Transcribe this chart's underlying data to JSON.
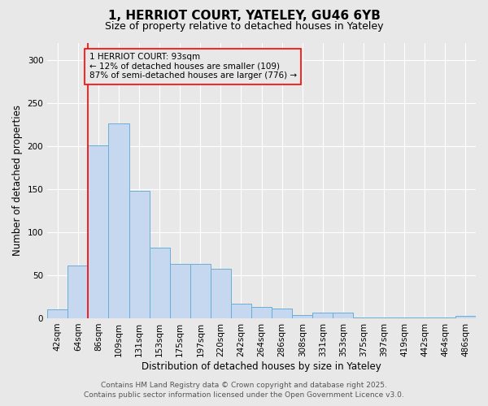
{
  "title_line1": "1, HERRIOT COURT, YATELEY, GU46 6YB",
  "title_line2": "Size of property relative to detached houses in Yateley",
  "xlabel": "Distribution of detached houses by size in Yateley",
  "ylabel": "Number of detached properties",
  "footer_line1": "Contains HM Land Registry data © Crown copyright and database right 2025.",
  "footer_line2": "Contains public sector information licensed under the Open Government Licence v3.0.",
  "bar_labels": [
    "42sqm",
    "64sqm",
    "86sqm",
    "109sqm",
    "131sqm",
    "153sqm",
    "175sqm",
    "197sqm",
    "220sqm",
    "242sqm",
    "264sqm",
    "286sqm",
    "308sqm",
    "331sqm",
    "353sqm",
    "375sqm",
    "397sqm",
    "419sqm",
    "442sqm",
    "464sqm",
    "486sqm"
  ],
  "bar_values": [
    10,
    61,
    201,
    226,
    148,
    82,
    63,
    63,
    57,
    17,
    13,
    11,
    4,
    7,
    7,
    1,
    1,
    1,
    1,
    1,
    3
  ],
  "bar_color": "#c5d8f0",
  "bar_edgecolor": "#6aaed6",
  "red_line_index": 2,
  "annotation_text": "1 HERRIOT COURT: 93sqm\n← 12% of detached houses are smaller (109)\n87% of semi-detached houses are larger (776) →",
  "ylim": [
    0,
    320
  ],
  "yticks": [
    0,
    50,
    100,
    150,
    200,
    250,
    300
  ],
  "background_color": "#e8e8e8",
  "grid_color": "#ffffff",
  "title_fontsize": 11,
  "subtitle_fontsize": 9,
  "axis_label_fontsize": 8.5,
  "tick_fontsize": 7.5,
  "annotation_fontsize": 7.5,
  "footer_fontsize": 6.5
}
